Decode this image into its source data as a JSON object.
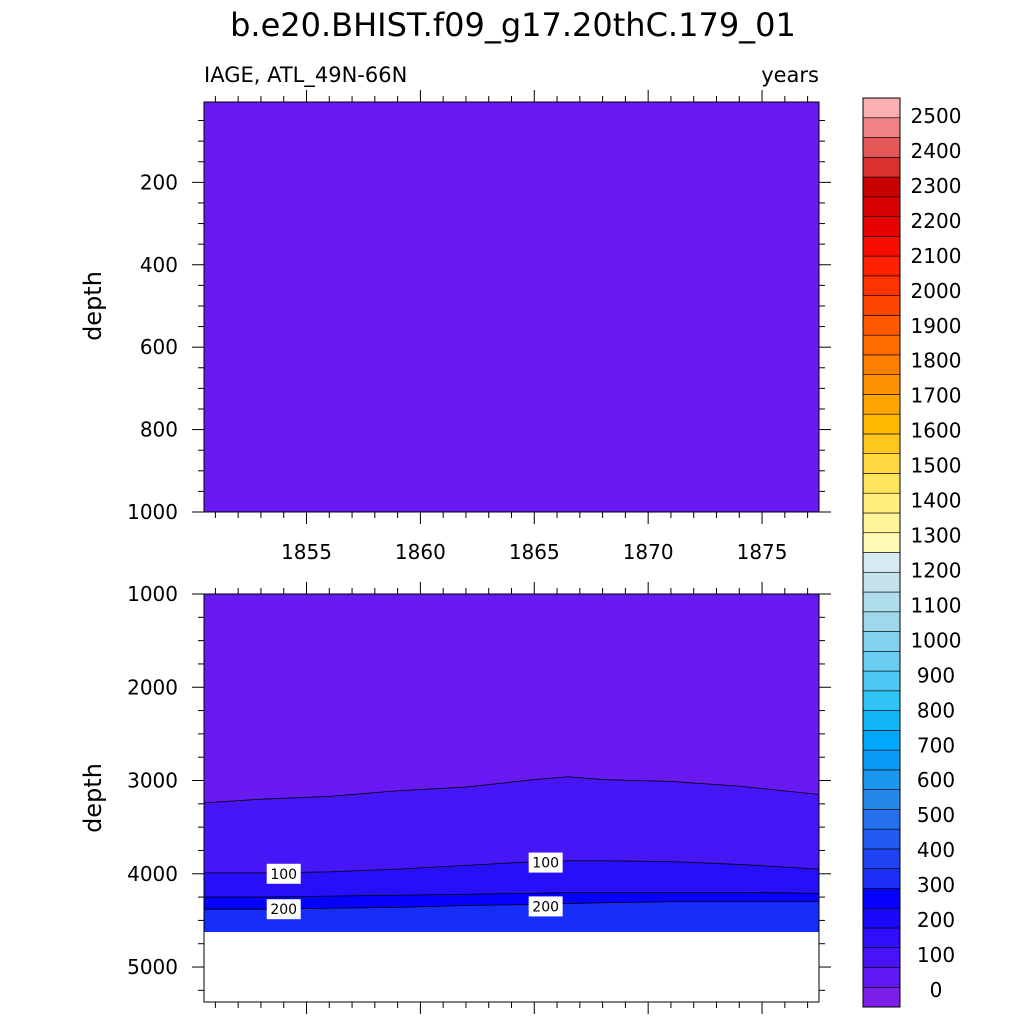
{
  "title": "b.e20.BHIST.f09_g17.20thC.179_01",
  "left_string": "IAGE, ATL_49N-66N",
  "right_string": "years",
  "ylabel_top": "depth",
  "ylabel_bottom": "depth",
  "colorbar": {
    "labels": [
      "2500",
      "2400",
      "2300",
      "2200",
      "2100",
      "2000",
      "1900",
      "1800",
      "1700",
      "1600",
      "1500",
      "1400",
      "1300",
      "1200",
      "1100",
      "1000",
      "900",
      "800",
      "700",
      "600",
      "500",
      "400",
      "300",
      "200",
      "100",
      "0"
    ],
    "colors": [
      "#7b1ee8",
      "#6019f3",
      "#4913f8",
      "#300ef9",
      "#1a08fb",
      "#0500ff",
      "#1b2ef5",
      "#1e44f2",
      "#2259ef",
      "#2570ec",
      "#2687ea",
      "#1c97f0",
      "#0a9bf7",
      "#00a9fd",
      "#12b5f8",
      "#30c3f6",
      "#4ec8f3",
      "#68cdf0",
      "#82d2ed",
      "#9dd8ec",
      "#b0ddeb",
      "#c4e3ec",
      "#d6ecf2",
      "#fff9b6",
      "#fff499",
      "#ffef7c",
      "#ffe45e",
      "#ffd73f",
      "#ffc81f",
      "#ffb800",
      "#ffa500",
      "#ff9200",
      "#ff7f00",
      "#ff6c00",
      "#ff5900",
      "#ff4600",
      "#ff3300",
      "#ff2000",
      "#f70d00",
      "#e60000",
      "#d80000",
      "#ca0000",
      "#d93030",
      "#e45858",
      "#ef8383",
      "#fab0b0"
    ]
  },
  "chart_data": [
    {
      "type": "heatmap",
      "panel": "top",
      "xlabel": "",
      "ylabel": "depth",
      "xlim": [
        1850.5,
        1877.5
      ],
      "ylim": [
        1000,
        5
      ],
      "x_ticks": [
        "1855",
        "1860",
        "1865",
        "1870",
        "1875"
      ],
      "y_ticks": [
        "200",
        "400",
        "600",
        "800",
        "1000"
      ],
      "fill_color": "#6919f2",
      "contours": []
    },
    {
      "type": "heatmap",
      "panel": "bottom",
      "xlabel": "",
      "ylabel": "depth",
      "xlim": [
        1850.5,
        1877.5
      ],
      "ylim": [
        5375,
        1000
      ],
      "y_ticks": [
        "1000",
        "2000",
        "3000",
        "4000",
        "5000"
      ],
      "bottom_of_data": 4625,
      "x": [
        1850.5,
        1853,
        1856,
        1859,
        1862,
        1865,
        1866.5,
        1868,
        1871,
        1874,
        1877.5
      ],
      "level_0_boundary": [
        3240,
        3200,
        3170,
        3110,
        3070,
        2990,
        2960,
        2990,
        3010,
        3060,
        3150
      ],
      "level_100_boundary": [
        3990,
        3990,
        3980,
        3950,
        3910,
        3870,
        3860,
        3860,
        3870,
        3900,
        3950
      ],
      "level_200_boundary": [
        4250,
        4250,
        4240,
        4230,
        4220,
        4210,
        4200,
        4200,
        4200,
        4200,
        4210
      ],
      "level_300_boundary": [
        4380,
        4380,
        4370,
        4360,
        4340,
        4330,
        4320,
        4310,
        4300,
        4300,
        4300
      ],
      "band_colors": [
        "#6919f2",
        "#4616f7",
        "#280ffa",
        "#0500ff",
        "#172dfa"
      ],
      "contour_labels": [
        {
          "text": "100",
          "x": 1854.0,
          "y": 4000
        },
        {
          "text": "100",
          "x": 1865.5,
          "y": 3880
        },
        {
          "text": "200",
          "x": 1854.0,
          "y": 4380
        },
        {
          "text": "200",
          "x": 1865.5,
          "y": 4350
        }
      ]
    }
  ]
}
